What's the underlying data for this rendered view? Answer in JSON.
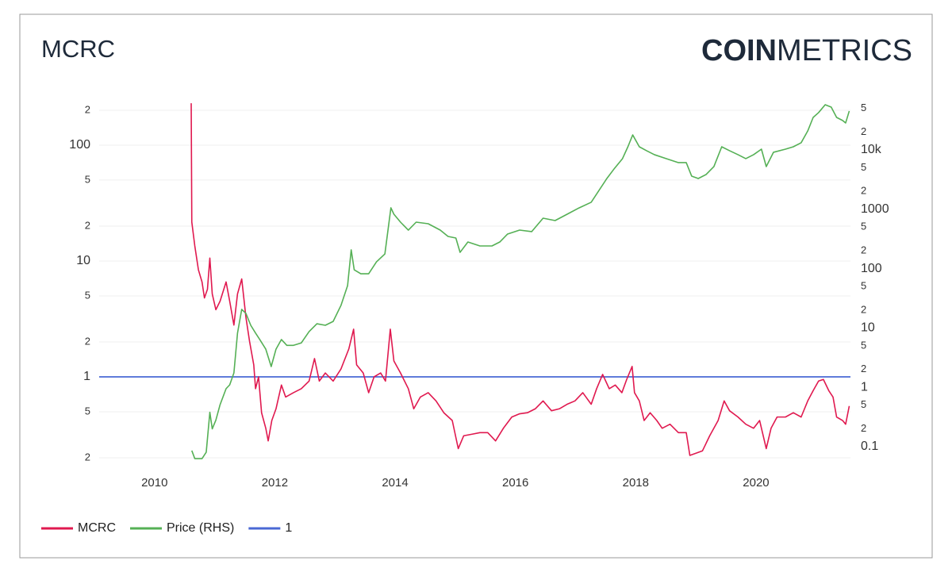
{
  "chart_data": {
    "type": "line",
    "title": "MCRC",
    "logo_bold": "COIN",
    "logo_light": "METRICS",
    "log_scale": true,
    "grid": true,
    "legend": "bottom-left",
    "xlim": [
      2009.08,
      2021.57
    ],
    "xticks": [
      2010,
      2012,
      2014,
      2016,
      2018,
      2020
    ],
    "ylim": [
      0.158,
      238
    ],
    "yticks": [
      {
        "value": 200,
        "label": "2"
      },
      100,
      {
        "value": 50,
        "label": "5"
      },
      {
        "value": 20,
        "label": "2"
      },
      10,
      5,
      2,
      1,
      {
        "value": 0.5,
        "label": "5"
      },
      {
        "value": 0.2,
        "label": "2"
      }
    ],
    "y2lim": [
      0.041,
      65300
    ],
    "y2ticks": [
      {
        "value": 50000,
        "label": "5"
      },
      {
        "value": 20000,
        "label": "2"
      },
      {
        "value": 10000,
        "label": "10k"
      },
      {
        "value": 5000,
        "label": "5"
      },
      {
        "value": 2000,
        "label": "2"
      },
      1000,
      {
        "value": 500,
        "label": "5"
      },
      {
        "value": 200,
        "label": "2"
      },
      100,
      {
        "value": 50,
        "label": "5"
      },
      {
        "value": 20,
        "label": "2"
      },
      10,
      5,
      2,
      1,
      {
        "value": 0.5,
        "label": "5"
      },
      {
        "value": 0.2,
        "label": "2"
      },
      0.1
    ],
    "series": [
      {
        "name": "MCRC",
        "color": "#e0194f",
        "x": [
          2010.61,
          2010.62,
          2010.67,
          2010.73,
          2010.79,
          2010.83,
          2010.88,
          2010.92,
          2010.96,
          2011.02,
          2011.09,
          2011.19,
          2011.25,
          2011.32,
          2011.38,
          2011.45,
          2011.52,
          2011.58,
          2011.65,
          2011.68,
          2011.73,
          2011.78,
          2011.85,
          2011.89,
          2011.95,
          2012.02,
          2012.11,
          2012.18,
          2012.31,
          2012.44,
          2012.57,
          2012.66,
          2012.74,
          2012.84,
          2012.97,
          2013.1,
          2013.23,
          2013.31,
          2013.36,
          2013.47,
          2013.56,
          2013.65,
          2013.76,
          2013.84,
          2013.92,
          2013.98,
          2014.09,
          2014.22,
          2014.31,
          2014.42,
          2014.55,
          2014.68,
          2014.81,
          2014.95,
          2015.05,
          2015.14,
          2015.28,
          2015.41,
          2015.54,
          2015.67,
          2015.8,
          2015.94,
          2016.07,
          2016.2,
          2016.33,
          2016.46,
          2016.6,
          2016.73,
          2016.86,
          2016.99,
          2017.12,
          2017.26,
          2017.35,
          2017.45,
          2017.56,
          2017.66,
          2017.77,
          2017.85,
          2017.94,
          2017.98,
          2018.06,
          2018.14,
          2018.24,
          2018.35,
          2018.44,
          2018.57,
          2018.71,
          2018.84,
          2018.9,
          2019.01,
          2019.11,
          2019.23,
          2019.37,
          2019.47,
          2019.56,
          2019.7,
          2019.83,
          2019.96,
          2020.06,
          2020.17,
          2020.25,
          2020.35,
          2020.49,
          2020.62,
          2020.75,
          2020.86,
          2020.95,
          2021.04,
          2021.12,
          2021.21,
          2021.28,
          2021.34,
          2021.44,
          2021.49,
          2021.55
        ],
        "values": [
          230,
          21.7,
          13.5,
          8.4,
          6.6,
          4.8,
          5.7,
          10.6,
          5.2,
          3.8,
          4.5,
          6.6,
          4.5,
          2.8,
          5.2,
          7.0,
          3.26,
          2.03,
          1.27,
          0.79,
          1,
          0.49,
          0.36,
          0.28,
          0.42,
          0.53,
          0.85,
          0.67,
          0.73,
          0.79,
          0.92,
          1.44,
          0.92,
          1.08,
          0.92,
          1.17,
          1.74,
          2.58,
          1.27,
          1.08,
          0.73,
          1,
          1.08,
          0.92,
          2.58,
          1.37,
          1.08,
          0.79,
          0.53,
          0.67,
          0.73,
          0.62,
          0.49,
          0.42,
          0.24,
          0.31,
          0.32,
          0.33,
          0.33,
          0.28,
          0.36,
          0.45,
          0.48,
          0.49,
          0.53,
          0.62,
          0.51,
          0.53,
          0.58,
          0.62,
          0.73,
          0.58,
          0.79,
          1.05,
          0.79,
          0.85,
          0.73,
          0.95,
          1.23,
          0.73,
          0.62,
          0.42,
          0.49,
          0.42,
          0.36,
          0.39,
          0.33,
          0.33,
          0.21,
          0.22,
          0.23,
          0.31,
          0.42,
          0.62,
          0.51,
          0.45,
          0.39,
          0.36,
          0.42,
          0.24,
          0.36,
          0.45,
          0.45,
          0.49,
          0.45,
          0.62,
          0.76,
          0.92,
          0.95,
          0.76,
          0.67,
          0.45,
          0.42,
          0.39,
          0.56
        ]
      },
      {
        "name": "Price (RHS)",
        "color": "#55b055",
        "axis": "y2",
        "x": [
          2010.62,
          2010.67,
          2010.79,
          2010.86,
          2010.92,
          2010.96,
          2011.02,
          2011.09,
          2011.19,
          2011.25,
          2011.32,
          2011.38,
          2011.45,
          2011.52,
          2011.6,
          2011.68,
          2011.75,
          2011.85,
          2011.94,
          2012.02,
          2012.11,
          2012.2,
          2012.31,
          2012.44,
          2012.57,
          2012.7,
          2012.84,
          2012.97,
          2013.1,
          2013.21,
          2013.27,
          2013.32,
          2013.43,
          2013.56,
          2013.69,
          2013.83,
          2013.93,
          2013.98,
          2014.09,
          2014.22,
          2014.35,
          2014.55,
          2014.75,
          2014.88,
          2015.01,
          2015.08,
          2015.21,
          2015.41,
          2015.61,
          2015.74,
          2015.87,
          2016.07,
          2016.27,
          2016.46,
          2016.66,
          2016.86,
          2017.06,
          2017.26,
          2017.39,
          2017.52,
          2017.65,
          2017.78,
          2017.87,
          2017.95,
          2018.06,
          2018.18,
          2018.31,
          2018.51,
          2018.71,
          2018.84,
          2018.93,
          2019.04,
          2019.17,
          2019.3,
          2019.43,
          2019.56,
          2019.7,
          2019.83,
          2019.96,
          2020.09,
          2020.17,
          2020.29,
          2020.49,
          2020.62,
          2020.75,
          2020.86,
          2020.95,
          2021.04,
          2021.15,
          2021.25,
          2021.34,
          2021.44,
          2021.49,
          2021.55
        ],
        "values": [
          0.086,
          0.063,
          0.063,
          0.081,
          0.38,
          0.2,
          0.28,
          0.51,
          0.95,
          1.1,
          1.75,
          8.2,
          20.6,
          17.6,
          11.1,
          8.2,
          6.4,
          4.4,
          2.24,
          4.4,
          6.4,
          5.1,
          5.1,
          5.6,
          8.7,
          11.8,
          11.1,
          12.9,
          24,
          51.8,
          207,
          95.7,
          82,
          82,
          130,
          177,
          1057,
          826,
          607,
          446,
          607,
          571,
          446,
          349,
          328,
          188,
          281,
          241,
          241,
          281,
          383,
          446,
          420,
          708,
          646,
          826,
          1057,
          1313,
          2080,
          3300,
          4930,
          7130,
          11300,
          17900,
          11300,
          9700,
          8320,
          7130,
          6110,
          6110,
          3620,
          3300,
          3850,
          5240,
          11300,
          9700,
          8320,
          7130,
          8320,
          10300,
          5240,
          9120,
          10300,
          11300,
          13200,
          20900,
          35300,
          42500,
          57800,
          52700,
          35300,
          31300,
          28500,
          45200
        ]
      },
      {
        "name": "1",
        "color": "#4a68d4",
        "value": 1
      }
    ]
  }
}
